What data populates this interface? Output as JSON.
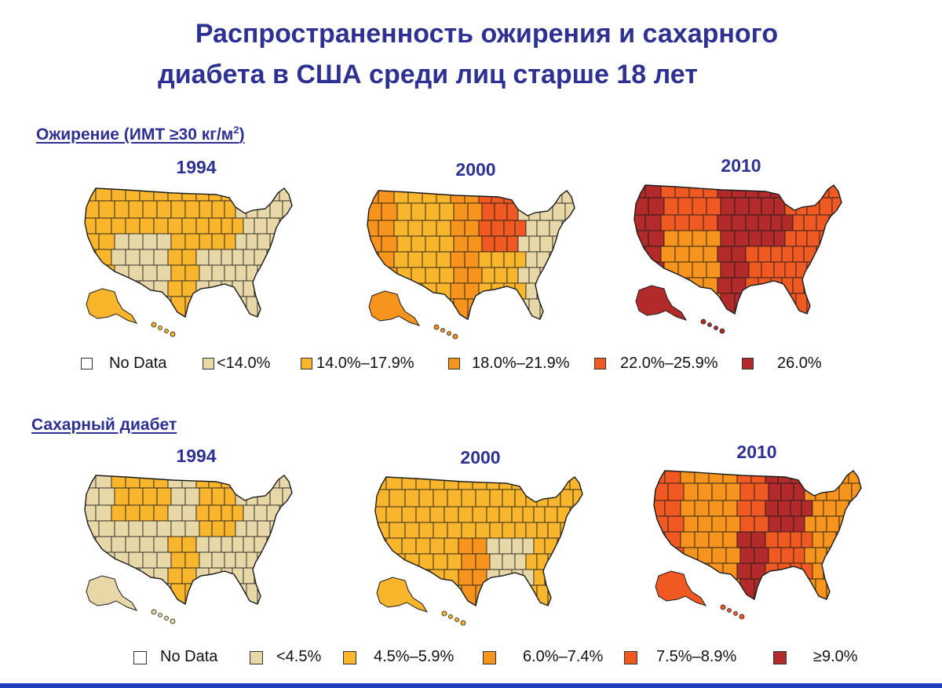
{
  "title": {
    "line1": "Распространенность ожирения и сахарного",
    "line2": "диабета в США среди лиц старше 18 лет"
  },
  "sections": [
    {
      "heading_main": "Ожирение (ИМТ ≥30 кг/м",
      "heading_sup": "2",
      "heading_tail": ")",
      "years": [
        "1994",
        "2000",
        "2010"
      ],
      "legend": [
        {
          "label": "No Data",
          "color": "#ffffff"
        },
        {
          "label": "<14.0%",
          "color": "#e8d8a8"
        },
        {
          "label": "14.0%–17.9%",
          "color": "#f9b52b"
        },
        {
          "label": "18.0%–21.9%",
          "color": "#f7941d"
        },
        {
          "label": "22.0%–25.9%",
          "color": "#f05a22"
        },
        {
          "label": "26.0%",
          "color": "#b22a2a"
        }
      ],
      "maps": [
        {
          "base": 1,
          "accents": [
            2,
            2,
            2,
            1,
            2,
            2,
            1,
            1
          ]
        },
        {
          "base": 2,
          "accents": [
            3,
            2,
            3,
            2,
            3,
            4,
            2,
            1
          ]
        },
        {
          "base": 4,
          "accents": [
            5,
            4,
            5,
            3,
            5,
            5,
            4,
            4
          ]
        }
      ]
    },
    {
      "heading_main": "Сахарный диабет",
      "heading_sup": "",
      "heading_tail": "",
      "years": [
        "1994",
        "2000",
        "2010"
      ],
      "legend": [
        {
          "label": "No Data",
          "color": "#ffffff"
        },
        {
          "label": "<4.5%",
          "color": "#e8d8a8"
        },
        {
          "label": "4.5%–5.9%",
          "color": "#f9b52b"
        },
        {
          "label": "6.0%–7.4%",
          "color": "#f7941d"
        },
        {
          "label": "7.5%–8.9%",
          "color": "#f05a22"
        },
        {
          "label": "≥9.0%",
          "color": "#b22a2a"
        }
      ],
      "maps": [
        {
          "base": 1,
          "accents": [
            1,
            2,
            1,
            1,
            2,
            2,
            1,
            1
          ]
        },
        {
          "base": 2,
          "accents": [
            2,
            2,
            2,
            2,
            3,
            2,
            1,
            2
          ]
        },
        {
          "base": 3,
          "accents": [
            4,
            3,
            4,
            3,
            5,
            5,
            4,
            3
          ]
        }
      ]
    }
  ]
}
